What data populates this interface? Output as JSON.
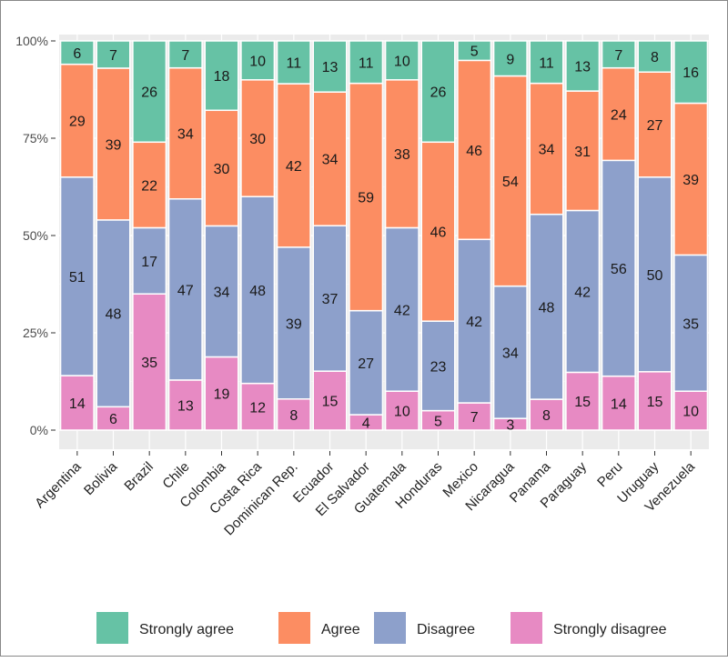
{
  "chart_data": {
    "type": "bar",
    "stacked": true,
    "normalized": true,
    "categories": [
      "Argentina",
      "Bolivia",
      "Brazil",
      "Chile",
      "Colombia",
      "Costa Rica",
      "Dominican Rep.",
      "Ecuador",
      "El Salvador",
      "Guatemala",
      "Honduras",
      "Mexico",
      "Nicaragua",
      "Panama",
      "Paraguay",
      "Peru",
      "Uruguay",
      "Venezuela"
    ],
    "series": [
      {
        "name": "Strongly agree",
        "color": "#66C2A5",
        "values": [
          6,
          7,
          26,
          7,
          18,
          10,
          11,
          13,
          11,
          10,
          26,
          5,
          9,
          11,
          13,
          7,
          8,
          16
        ]
      },
      {
        "name": "Agree",
        "color": "#FC8D62",
        "values": [
          29,
          39,
          22,
          34,
          30,
          30,
          42,
          34,
          59,
          38,
          46,
          46,
          54,
          34,
          31,
          24,
          27,
          39
        ]
      },
      {
        "name": "Disagree",
        "color": "#8DA0CB",
        "values": [
          51,
          48,
          17,
          47,
          34,
          48,
          39,
          37,
          27,
          42,
          23,
          42,
          34,
          48,
          42,
          56,
          50,
          35
        ]
      },
      {
        "name": "Strongly disagree",
        "color": "#E78AC3",
        "values": [
          14,
          6,
          35,
          13,
          19,
          12,
          8,
          15,
          4,
          10,
          5,
          7,
          3,
          8,
          15,
          14,
          15,
          10
        ]
      }
    ],
    "yticks": [
      "0%",
      "25%",
      "50%",
      "75%",
      "100%"
    ],
    "ylim": [
      0,
      1
    ],
    "xlabel": "",
    "ylabel": "",
    "grid": true,
    "legend_position": "bottom",
    "panel_background": "#EBEBEB"
  }
}
